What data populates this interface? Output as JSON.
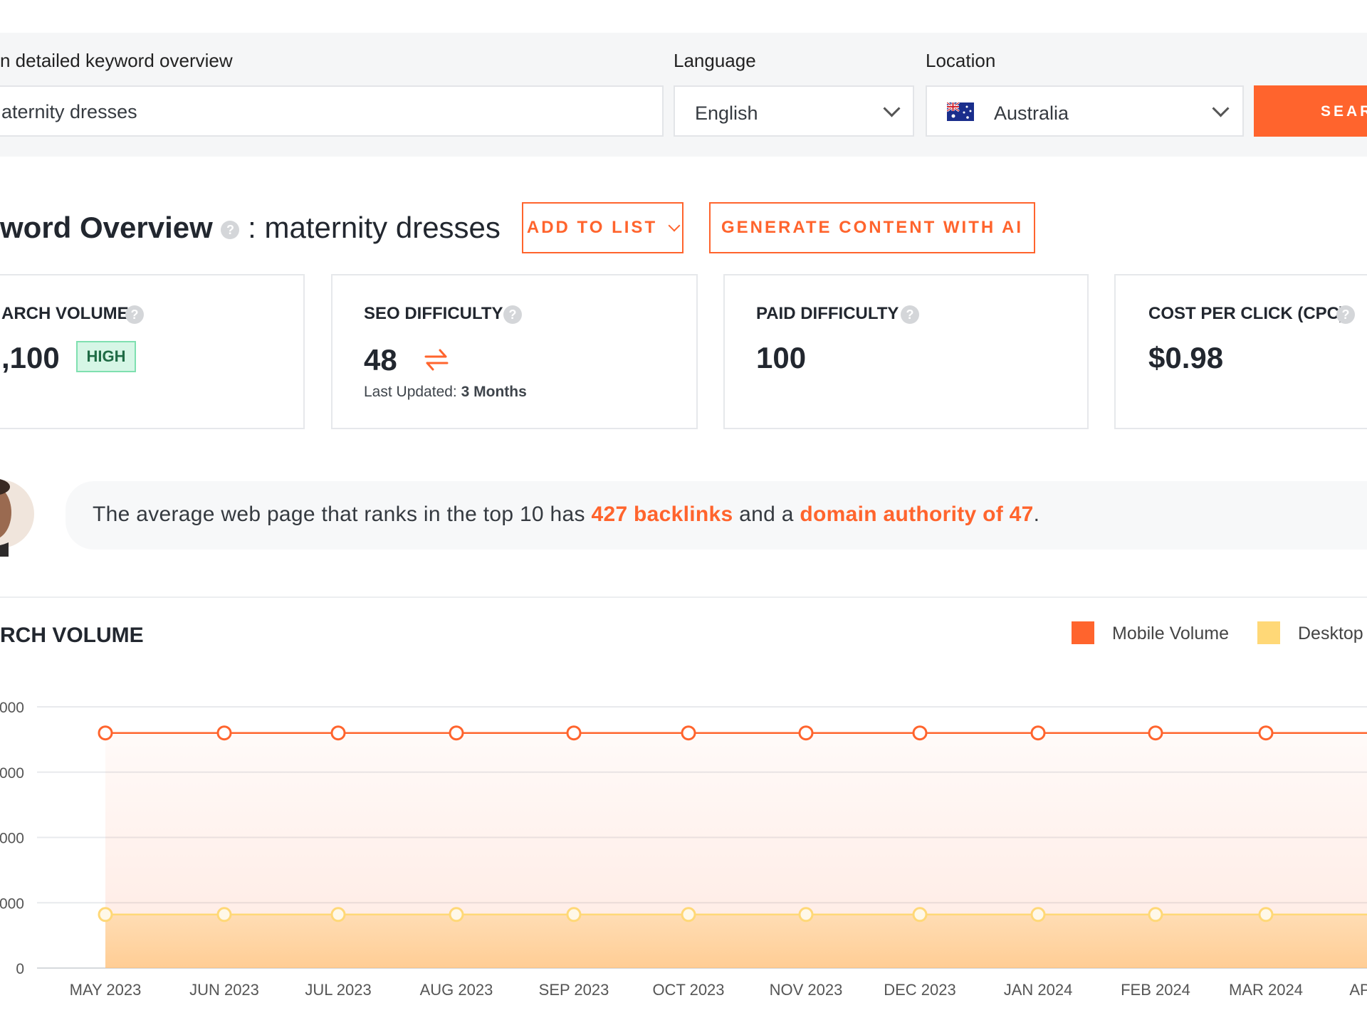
{
  "search": {
    "keyword_label": "n detailed keyword overview",
    "keyword_value": "aternity dresses",
    "language_label": "Language",
    "language_value": "English",
    "location_label": "Location",
    "location_value": "Australia",
    "button_label": "SEAR"
  },
  "overview": {
    "title_bold": "word Overview",
    "title_rest": ": maternity dresses",
    "help_glyph": "?",
    "add_to_list": "ADD TO LIST",
    "generate": "GENERATE CONTENT WITH AI"
  },
  "metrics": [
    {
      "title": "ARCH VOLUME",
      "value": ",100",
      "badge": "HIGH"
    },
    {
      "title": "SEO DIFFICULTY",
      "value": "48",
      "updated_label": "Last Updated:",
      "updated_value": "3 Months"
    },
    {
      "title": "PAID DIFFICULTY",
      "value": "100"
    },
    {
      "title": "COST PER CLICK (CPC)",
      "value": "$0.98"
    }
  ],
  "banner": {
    "pre": "The average web page that ranks in the top 10 has ",
    "backlinks": "427 backlinks",
    "mid": " and a ",
    "authority": "domain authority of 47",
    "post": "."
  },
  "chart": {
    "title": "RCH VOLUME",
    "legend": [
      {
        "label": "Mobile Volume",
        "color": "#ff642d"
      },
      {
        "label": "Desktop",
        "color": "#ffd877"
      }
    ]
  },
  "chart_data": {
    "type": "area",
    "title": "RCH VOLUME",
    "categories": [
      "MAY 2023",
      "JUN 2023",
      "JUL 2023",
      "AUG 2023",
      "SEP 2023",
      "OCT 2023",
      "NOV 2023",
      "DEC 2023",
      "JAN 2024",
      "FEB 2024",
      "MAR 2024",
      "AP"
    ],
    "y_ticks": [
      "0",
      "000",
      "000",
      "000",
      "000"
    ],
    "ylim": [
      0,
      4000
    ],
    "grid": true,
    "legend_position": "top-right",
    "series": [
      {
        "name": "Mobile Volume",
        "color": "#ff642d",
        "values": [
          3600,
          3600,
          3600,
          3600,
          3600,
          3600,
          3600,
          3600,
          3600,
          3600,
          3600,
          3600
        ]
      },
      {
        "name": "Desktop",
        "color": "#ffd877",
        "values": [
          820,
          820,
          820,
          820,
          820,
          820,
          820,
          820,
          820,
          820,
          820,
          820
        ]
      }
    ]
  }
}
